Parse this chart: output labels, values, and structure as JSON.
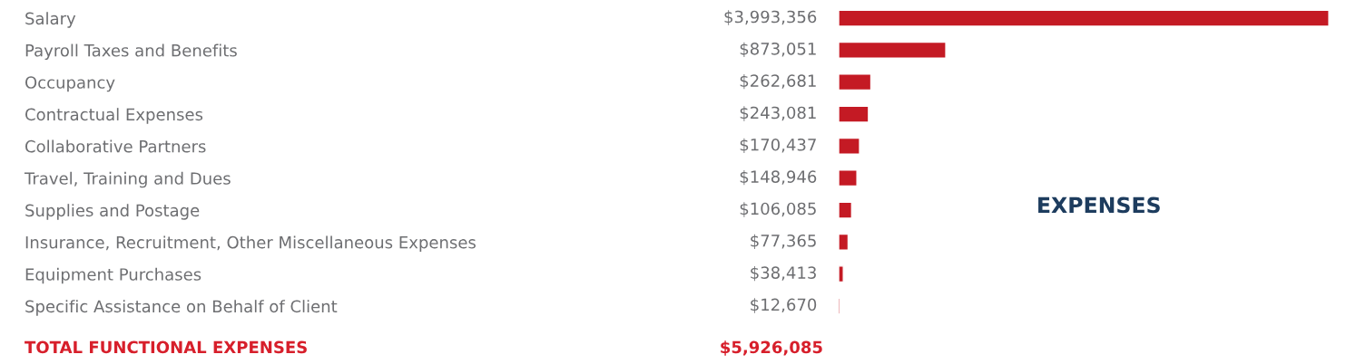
{
  "chart_data": {
    "type": "bar",
    "orientation": "horizontal",
    "title": "EXPENSES",
    "categories": [
      "Salary",
      "Payroll Taxes and Benefits",
      "Occupancy",
      "Contractual Expenses",
      "Collaborative Partners",
      "Travel, Training and Dues",
      "Supplies and Postage",
      "Insurance, Recruitment, Other Miscellaneous Expenses",
      "Equipment Purchases",
      "Specific Assistance on Behalf of Client"
    ],
    "values": [
      3993356,
      873051,
      262681,
      243081,
      170437,
      148946,
      106085,
      77365,
      38413,
      12670
    ],
    "value_labels": [
      "$3,993,356",
      "$873,051",
      "$262,681",
      "$243,081",
      "$170,437",
      "$148,946",
      "$106,085",
      "$77,365",
      "$38,413",
      "$12,670"
    ],
    "color": "#c41a24",
    "xlim": [
      0,
      4000000
    ],
    "tick_labels": "y",
    "grid": false,
    "annotations": [
      "TOTAL FUNCTIONAL EXPENSES",
      "$5,926,085"
    ]
  }
}
